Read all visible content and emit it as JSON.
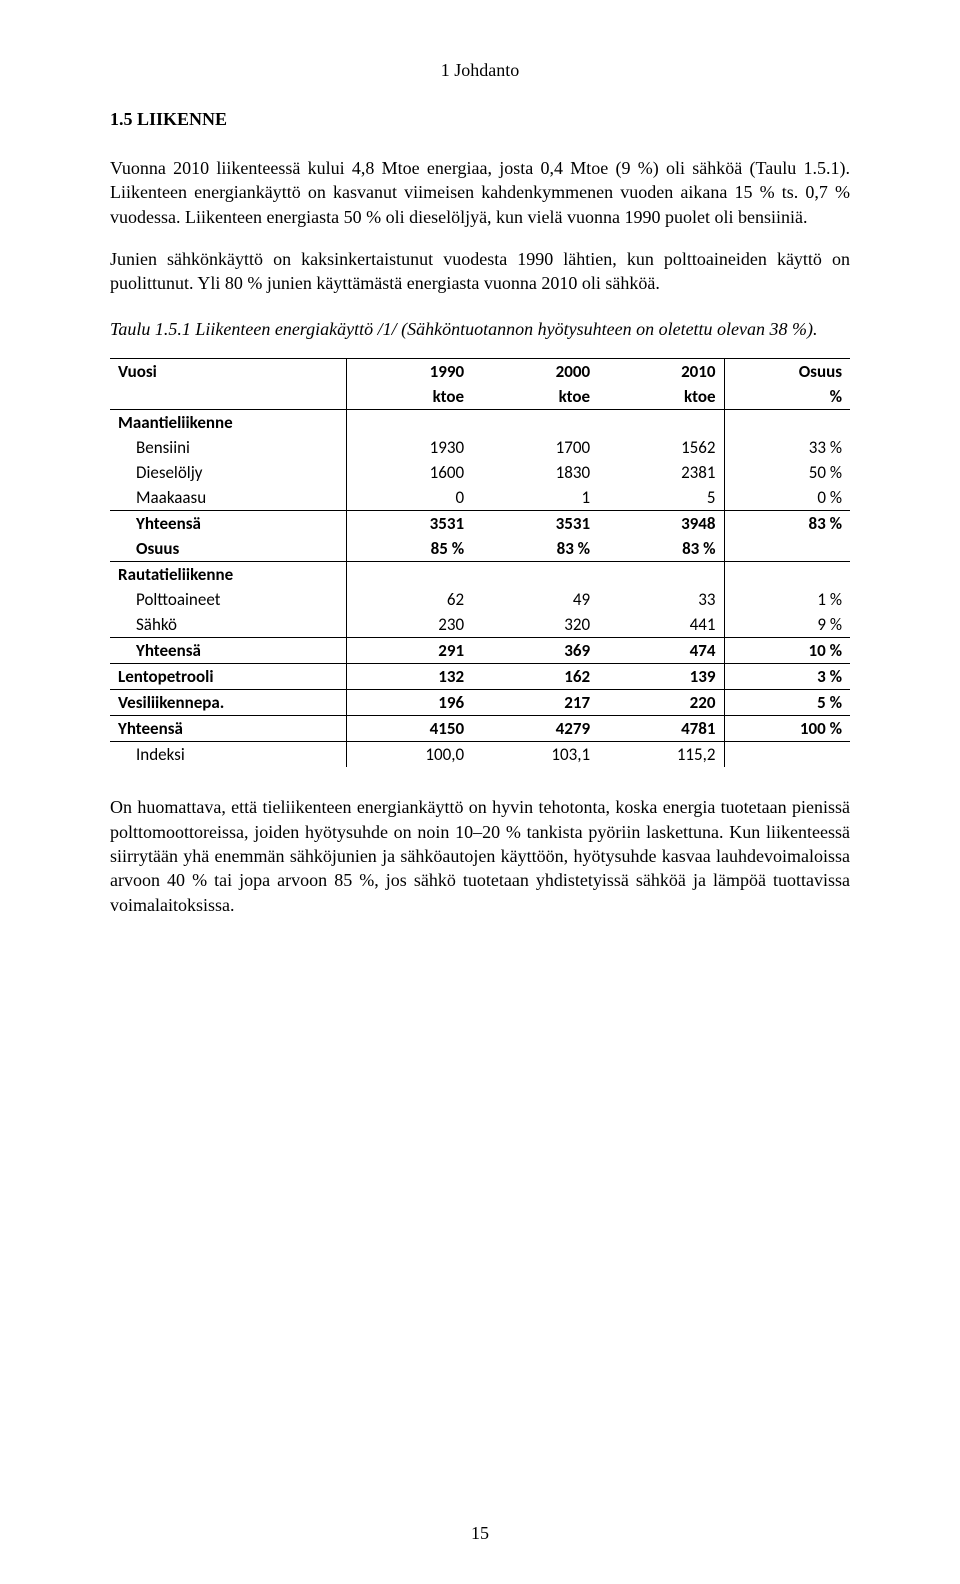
{
  "header": "1 Johdanto",
  "section_heading": "1.5 LIIKENNE",
  "para1": "Vuonna 2010 liikenteessä kului 4,8 Mtoe energiaa, josta 0,4 Mtoe (9 %) oli sähköä (Taulu 1.5.1). Liikenteen energiankäyttö on kasvanut viimeisen kahdenkymmenen vuoden aikana 15 % ts. 0,7 % vuodessa. Liikenteen energiasta 50 % oli dieselöljyä, kun vielä vuonna 1990 puolet oli bensiiniä.",
  "para2": "Junien sähkönkäyttö on kaksinkertaistunut vuodesta 1990 lähtien, kun polttoaineiden käyttö on puolittunut. Yli 80 % junien käyttämästä energiasta vuonna 2010 oli sähköä.",
  "table_caption": "Taulu 1.5.1 Liikenteen energiakäyttö /1/ (Sähköntuotannon hyötysuhteen on oletettu olevan 38 %).",
  "table": {
    "header1": {
      "c0": "Vuosi",
      "c1": "1990",
      "c2": "2000",
      "c3": "2010",
      "c4": "Osuus"
    },
    "header2": {
      "c0": "",
      "c1": "ktoe",
      "c2": "ktoe",
      "c3": "ktoe",
      "c4": "%"
    },
    "rows": [
      {
        "label": "Maantieliikenne",
        "c1": "",
        "c2": "",
        "c3": "",
        "c4": "",
        "bold": true,
        "indent": false,
        "border_top": true
      },
      {
        "label": "Bensiini",
        "c1": "1930",
        "c2": "1700",
        "c3": "1562",
        "c4": "33 %",
        "bold": false,
        "indent": true
      },
      {
        "label": "Dieselöljy",
        "c1": "1600",
        "c2": "1830",
        "c3": "2381",
        "c4": "50 %",
        "bold": false,
        "indent": true
      },
      {
        "label": "Maakaasu",
        "c1": "0",
        "c2": "1",
        "c3": "5",
        "c4": "0 %",
        "bold": false,
        "indent": true,
        "border_bottom": true
      },
      {
        "label": "Yhteensä",
        "c1": "3531",
        "c2": "3531",
        "c3": "3948",
        "c4": "83 %",
        "bold": true,
        "indent": true
      },
      {
        "label": "Osuus",
        "c1": "85 %",
        "c2": "83 %",
        "c3": "83 %",
        "c4": "",
        "bold": true,
        "indent": true,
        "border_bottom": true
      },
      {
        "label": "Rautatieliikenne",
        "c1": "",
        "c2": "",
        "c3": "",
        "c4": "",
        "bold": true,
        "indent": false
      },
      {
        "label": "Polttoaineet",
        "c1": "62",
        "c2": "49",
        "c3": "33",
        "c4": "1 %",
        "bold": false,
        "indent": true
      },
      {
        "label": "Sähkö",
        "c1": "230",
        "c2": "320",
        "c3": "441",
        "c4": "9 %",
        "bold": false,
        "indent": true,
        "border_bottom": true
      },
      {
        "label": "Yhteensä",
        "c1": "291",
        "c2": "369",
        "c3": "474",
        "c4": "10 %",
        "bold": true,
        "indent": true,
        "border_bottom": true
      },
      {
        "label": "Lentopetrooli",
        "c1": "132",
        "c2": "162",
        "c3": "139",
        "c4": "3 %",
        "bold": true,
        "indent": false,
        "border_bottom": true
      },
      {
        "label": "Vesiliikennepa.",
        "c1": "196",
        "c2": "217",
        "c3": "220",
        "c4": "5 %",
        "bold": true,
        "indent": false,
        "border_bottom": true
      },
      {
        "label": "Yhteensä",
        "c1": "4150",
        "c2": "4279",
        "c3": "4781",
        "c4": "100 %",
        "bold": true,
        "indent": false,
        "border_bottom": true
      },
      {
        "label": "Indeksi",
        "c1": "100,0",
        "c2": "103,1",
        "c3": "115,2",
        "c4": "",
        "bold": false,
        "indent": true
      }
    ]
  },
  "para3": "On huomattava, että tieliikenteen energiankäyttö on hyvin tehotonta, koska energia tuotetaan pienissä polttomoottoreissa, joiden hyötysuhde on noin 10–20 % tankista pyöriin laskettuna. Kun liikenteessä siirrytään yhä enemmän sähköjunien ja sähköautojen käyttöön, hyötysuhde kasvaa lauhdevoimaloissa arvoon 40 % tai jopa arvoon 85 %, jos sähkö tuotetaan yhdistetyissä sähköä ja lämpöä tuottavissa voimalaitoksissa.",
  "page_number": "15"
}
